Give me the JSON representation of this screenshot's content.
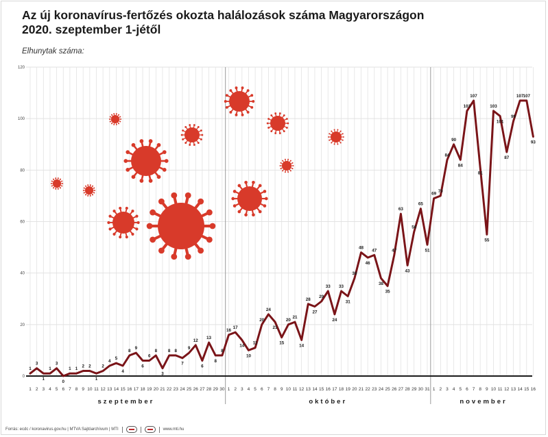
{
  "title_line1": "Az új koronavírus-fertőzés okozta halálozások száma Magyarországon",
  "title_line2": "2020. szeptember 1-jétől",
  "subtitle": "Elhunytak száma:",
  "footer": {
    "source": "Forrás: ecdc / koronavirus.gov.hu | MTVA Sajtóarchívum | MTI",
    "website": "www.mti.hu"
  },
  "colors": {
    "line": "#7a1418",
    "virus": "#d83a2a",
    "grid": "#e2e2e2",
    "axis": "#1a1a1a",
    "month_divider": "#9a9a9a"
  },
  "chart_data": {
    "type": "line",
    "title": "Az új koronavírus-fertőzés okozta halálozások száma Magyarországon 2020. szeptember 1-jétől",
    "ylabel": "Elhunytak száma:",
    "ylim": [
      0,
      120
    ],
    "yticks": [
      0,
      20,
      40,
      60,
      80,
      100,
      120
    ],
    "grid": true,
    "months": [
      {
        "name": "szeptember",
        "days": 30
      },
      {
        "name": "október",
        "days": 31
      },
      {
        "name": "november",
        "days": 16
      }
    ],
    "x": [
      "1",
      "2",
      "3",
      "4",
      "5",
      "6",
      "7",
      "8",
      "9",
      "10",
      "11",
      "12",
      "13",
      "14",
      "15",
      "16",
      "17",
      "18",
      "19",
      "20",
      "21",
      "22",
      "23",
      "24",
      "25",
      "26",
      "27",
      "28",
      "29",
      "30",
      "1",
      "2",
      "3",
      "4",
      "5",
      "6",
      "7",
      "8",
      "9",
      "10",
      "11",
      "12",
      "13",
      "14",
      "15",
      "16",
      "17",
      "18",
      "19",
      "20",
      "21",
      "22",
      "23",
      "24",
      "25",
      "26",
      "27",
      "28",
      "29",
      "30",
      "31",
      "1",
      "2",
      "3",
      "4",
      "5",
      "6",
      "7",
      "8",
      "9",
      "10",
      "11",
      "12",
      "13",
      "14",
      "15",
      "16"
    ],
    "series": [
      {
        "values": [
          1,
          3,
          1,
          1,
          3,
          0,
          1,
          1,
          2,
          2,
          1,
          2,
          4,
          5,
          4,
          8,
          9,
          6,
          6,
          8,
          3,
          8,
          8,
          7,
          9,
          12,
          6,
          13,
          8,
          8,
          16,
          17,
          14,
          10,
          11,
          20,
          24,
          21,
          15,
          20,
          21,
          14,
          28,
          27,
          29,
          33,
          24,
          33,
          31,
          38,
          48,
          46,
          47,
          38,
          35,
          47,
          63,
          43,
          56,
          65,
          51,
          69,
          70,
          84,
          90,
          84,
          103,
          107,
          81,
          55,
          103,
          101,
          87,
          99,
          107,
          107,
          93
        ]
      }
    ]
  }
}
